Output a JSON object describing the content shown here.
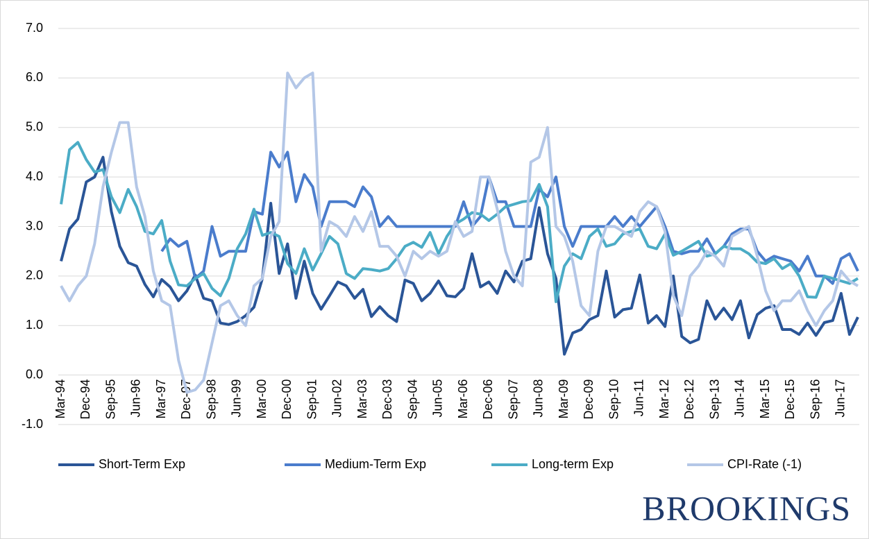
{
  "chart_data": {
    "type": "line",
    "categories": [
      "Mar-94",
      null,
      null,
      "Dec-94",
      null,
      null,
      "Sep-95",
      null,
      null,
      "Jun-96",
      null,
      null,
      "Mar-97",
      null,
      null,
      "Dec-97",
      null,
      null,
      "Sep-98",
      null,
      null,
      "Jun-99",
      null,
      null,
      "Mar-00",
      null,
      null,
      "Dec-00",
      null,
      null,
      "Sep-01",
      null,
      null,
      "Jun-02",
      null,
      null,
      "Mar-03",
      null,
      null,
      "Dec-03",
      null,
      null,
      "Sep-04",
      null,
      null,
      "Jun-05",
      null,
      null,
      "Mar-06",
      null,
      null,
      "Dec-06",
      null,
      null,
      "Sep-07",
      null,
      null,
      "Jun-08",
      null,
      null,
      "Mar-09",
      null,
      null,
      "Dec-09",
      null,
      null,
      "Sep-10",
      null,
      null,
      "Jun-11",
      null,
      null,
      "Mar-12",
      null,
      null,
      "Dec-12",
      null,
      null,
      "Sep-13",
      null,
      null,
      "Jun-14",
      null,
      null,
      "Mar-15",
      null,
      null,
      "Dec-15",
      null,
      null,
      "Sep-16",
      null,
      null,
      "Jun-17",
      null,
      null
    ],
    "series": [
      {
        "name": "Short-Term Exp",
        "color": "#2a5597",
        "values": [
          2.3,
          2.95,
          3.15,
          3.9,
          4.0,
          4.4,
          3.3,
          2.6,
          2.27,
          2.2,
          1.83,
          1.58,
          1.93,
          1.78,
          1.5,
          1.7,
          2.02,
          1.55,
          1.5,
          1.05,
          1.02,
          1.08,
          1.2,
          1.37,
          1.95,
          3.47,
          2.05,
          2.65,
          1.55,
          2.3,
          1.65,
          1.33,
          1.6,
          1.88,
          1.8,
          1.55,
          1.73,
          1.18,
          1.38,
          1.2,
          1.08,
          1.92,
          1.85,
          1.5,
          1.65,
          1.9,
          1.6,
          1.58,
          1.75,
          2.45,
          1.78,
          1.88,
          1.65,
          2.1,
          1.88,
          2.3,
          2.35,
          3.38,
          2.45,
          1.95,
          0.42,
          0.85,
          0.92,
          1.12,
          1.2,
          2.1,
          1.17,
          1.32,
          1.35,
          2.02,
          1.05,
          1.2,
          0.98,
          2.0,
          0.78,
          0.65,
          0.72,
          1.5,
          1.13,
          1.35,
          1.12,
          1.5,
          0.75,
          1.22,
          1.35,
          1.4,
          0.92,
          0.92,
          0.82,
          1.05,
          0.8,
          1.06,
          1.1,
          1.65,
          0.82,
          1.17
        ]
      },
      {
        "name": "Medium-Term Exp",
        "color": "#4a7ccc",
        "values": [
          null,
          null,
          null,
          null,
          null,
          null,
          null,
          null,
          null,
          null,
          null,
          null,
          2.5,
          2.75,
          2.6,
          2.7,
          1.95,
          2.1,
          3.0,
          2.4,
          2.5,
          2.5,
          2.5,
          3.3,
          3.25,
          4.5,
          4.2,
          4.5,
          3.5,
          4.05,
          3.8,
          3.0,
          3.5,
          3.5,
          3.5,
          3.4,
          3.8,
          3.6,
          3.0,
          3.2,
          3.0,
          3.0,
          3.0,
          3.0,
          3.0,
          3.0,
          3.0,
          3.0,
          3.5,
          3.0,
          3.2,
          4.0,
          3.5,
          3.5,
          3.0,
          3.0,
          3.0,
          3.75,
          3.6,
          4.0,
          3.0,
          2.6,
          3.0,
          3.0,
          3.0,
          3.0,
          3.2,
          3.0,
          3.2,
          3.0,
          3.2,
          3.4,
          3.0,
          2.5,
          2.45,
          2.5,
          2.5,
          2.75,
          2.45,
          2.6,
          2.85,
          2.95,
          2.95,
          2.5,
          2.3,
          2.4,
          2.35,
          2.3,
          2.1,
          2.4,
          2.0,
          2.0,
          1.85,
          2.35,
          2.45,
          2.1
        ]
      },
      {
        "name": "Long-term Exp",
        "color": "#4bacc6",
        "values": [
          3.45,
          4.55,
          4.7,
          4.35,
          4.1,
          4.15,
          3.6,
          3.28,
          3.75,
          3.4,
          2.9,
          2.85,
          3.12,
          2.3,
          1.82,
          1.8,
          1.95,
          2.05,
          1.75,
          1.6,
          1.95,
          2.55,
          2.85,
          3.35,
          2.82,
          2.88,
          2.8,
          2.25,
          2.05,
          2.55,
          2.12,
          2.45,
          2.8,
          2.65,
          2.05,
          1.95,
          2.15,
          2.13,
          2.1,
          2.15,
          2.35,
          2.6,
          2.68,
          2.58,
          2.88,
          2.45,
          2.8,
          3.05,
          3.15,
          3.28,
          3.25,
          3.12,
          3.25,
          3.4,
          3.45,
          3.5,
          3.52,
          3.85,
          3.4,
          1.48,
          2.2,
          2.45,
          2.35,
          2.8,
          2.95,
          2.6,
          2.65,
          2.85,
          2.9,
          2.95,
          2.6,
          2.55,
          2.85,
          2.42,
          2.5,
          2.6,
          2.7,
          2.4,
          2.45,
          2.6,
          2.55,
          2.55,
          2.45,
          2.28,
          2.25,
          2.35,
          2.15,
          2.25,
          2.0,
          1.58,
          1.57,
          2.0,
          1.95,
          1.9,
          1.85,
          1.95
        ]
      },
      {
        "name": "CPI-Rate (-1)",
        "color": "#b4c7e7",
        "values": [
          1.8,
          1.5,
          1.8,
          2.0,
          2.65,
          3.8,
          4.5,
          5.1,
          5.1,
          3.8,
          3.2,
          2.1,
          1.5,
          1.4,
          0.3,
          -0.35,
          -0.3,
          -0.1,
          0.65,
          1.4,
          1.5,
          1.2,
          1.0,
          1.8,
          1.95,
          2.8,
          3.1,
          6.1,
          5.8,
          6.0,
          6.1,
          2.5,
          3.1,
          3.0,
          2.8,
          3.2,
          2.9,
          3.3,
          2.6,
          2.6,
          2.4,
          2.0,
          2.5,
          2.35,
          2.5,
          2.4,
          2.5,
          3.1,
          2.8,
          2.9,
          4.0,
          4.0,
          3.35,
          2.5,
          2.0,
          1.8,
          4.3,
          4.4,
          5.0,
          3.0,
          2.8,
          2.3,
          1.4,
          1.2,
          2.5,
          3.0,
          3.0,
          2.9,
          2.8,
          3.3,
          3.5,
          3.4,
          2.9,
          1.6,
          1.2,
          2.0,
          2.2,
          2.5,
          2.4,
          2.2,
          2.8,
          2.9,
          3.0,
          2.4,
          1.7,
          1.3,
          1.5,
          1.5,
          1.7,
          1.3,
          1.0,
          1.3,
          1.5,
          2.1,
          1.9,
          1.8
        ]
      }
    ],
    "ylim": [
      -1,
      7
    ],
    "yticks": [
      {
        "value": -1,
        "label": "-1.0"
      },
      {
        "value": 0,
        "label": "0.0"
      },
      {
        "value": 1,
        "label": "1.0"
      },
      {
        "value": 2,
        "label": "2.0"
      },
      {
        "value": 3,
        "label": "3.0"
      },
      {
        "value": 4,
        "label": "4.0"
      },
      {
        "value": 5,
        "label": "5.0"
      },
      {
        "value": 6,
        "label": "6.0"
      },
      {
        "value": 7,
        "label": "7.0"
      }
    ],
    "grid": true,
    "legend": "bottom",
    "brand": "BROOKINGS"
  }
}
